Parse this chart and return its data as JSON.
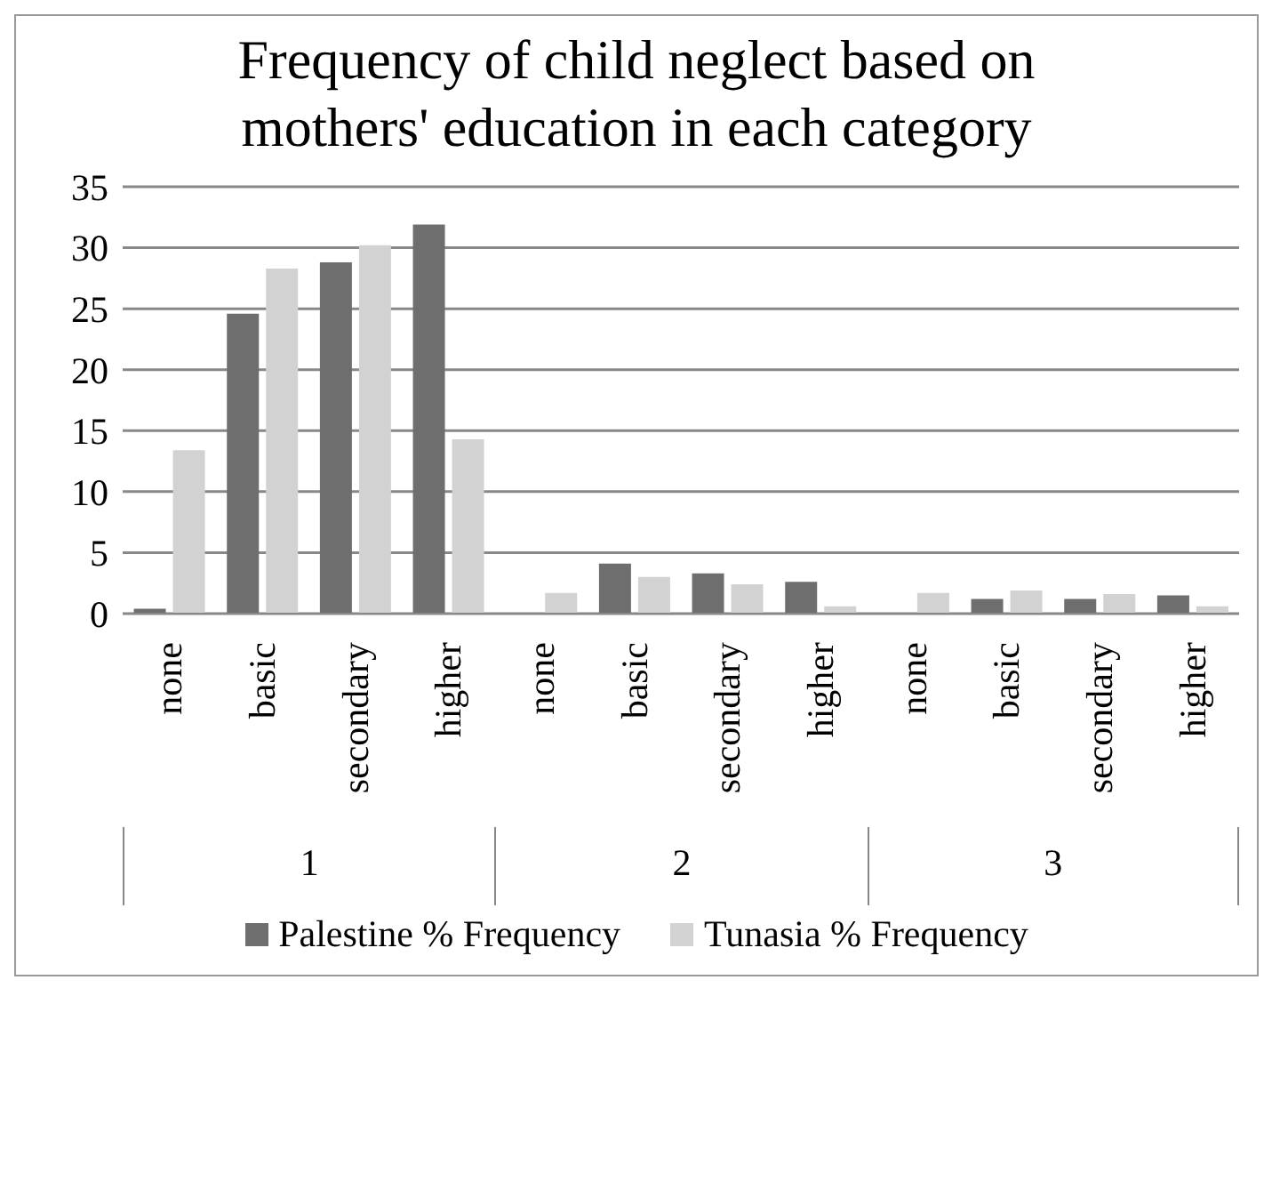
{
  "chart_data": {
    "type": "bar",
    "title": "Frequency of child neglect based on mothers' education in each category",
    "categories": [
      "none",
      "basic",
      "secondary",
      "higher",
      "none",
      "basic",
      "secondary",
      "higher",
      "none",
      "basic",
      "secondary",
      "higher"
    ],
    "annotations": [
      "1",
      "2",
      "3"
    ],
    "series": [
      {
        "name": "Palestine % Frequency",
        "color": "#6e6e6e",
        "values": [
          0.4,
          24.6,
          28.8,
          31.9,
          0,
          4.1,
          3.3,
          2.6,
          0,
          1.2,
          1.2,
          1.5
        ]
      },
      {
        "name": "Tunasia % Frequency",
        "color": "#d2d2d2",
        "values": [
          13.4,
          28.3,
          30.2,
          14.3,
          1.7,
          3.0,
          2.4,
          0.6,
          1.7,
          1.9,
          1.6,
          0.6
        ]
      }
    ],
    "ylim": [
      0,
      35
    ],
    "yticks": [
      0,
      5,
      10,
      15,
      20,
      25,
      30,
      35
    ],
    "grid": "y",
    "legend": "bottom"
  }
}
